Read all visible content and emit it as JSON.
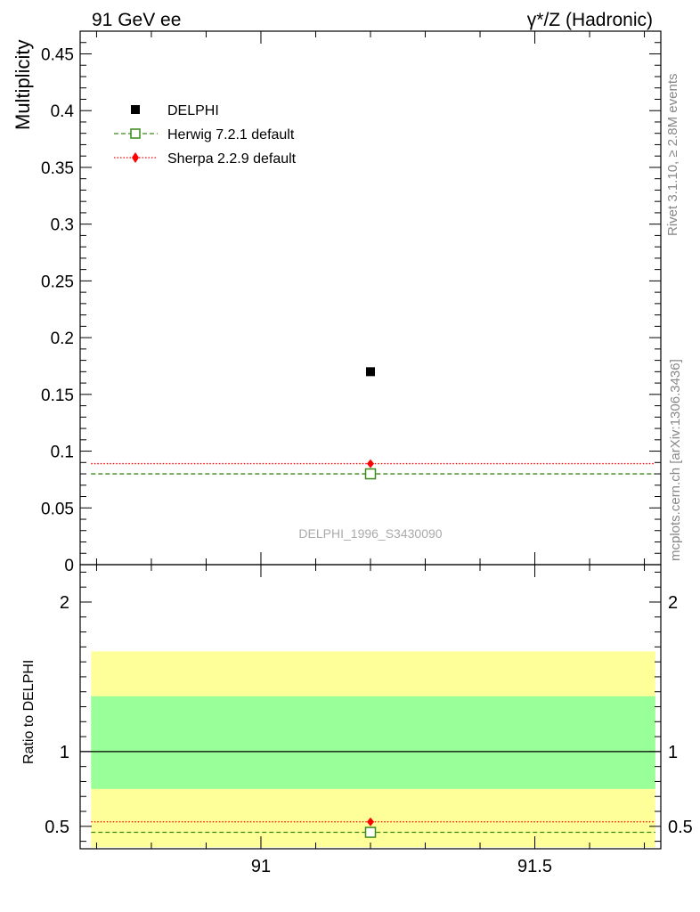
{
  "header": {
    "left_title": "91 GeV ee",
    "right_title": "γ*/Z (Hadronic)"
  },
  "side_labels": {
    "rivet": "Rivet 3.1.10, ≥ 2.8M events",
    "mcplots": "mcplots.cern.ch [arXiv:1306.3436]"
  },
  "watermark": "DELPHI_1996_S3430090",
  "colors": {
    "data": "#000000",
    "herwig": "#3a8a1a",
    "sherpa": "#ff0000",
    "band_inner": "#99ff99",
    "band_outer": "#ffff99"
  },
  "chart_data": [
    {
      "type": "scatter",
      "panel": "main",
      "ylabel": "Multiplicity",
      "xlim": [
        90.67,
        91.73
      ],
      "ylim": [
        0,
        0.47
      ],
      "yticks": [
        0,
        0.05,
        0.1,
        0.15,
        0.2,
        0.25,
        0.3,
        0.35,
        0.4,
        0.45
      ],
      "ytick_labels": [
        "0",
        "0.05",
        "0.1",
        "0.15",
        "0.2",
        "0.25",
        "0.3",
        "0.35",
        "0.4",
        "0.45"
      ],
      "legend_placement": "top-left",
      "series": [
        {
          "name": "DELPHI",
          "x": [
            91.2
          ],
          "y": [
            0.17
          ],
          "marker": "filled-square"
        },
        {
          "name": "Herwig 7.2.1 default",
          "x": [
            91.2
          ],
          "y": [
            0.08
          ],
          "line": "dashed",
          "marker": "open-square"
        },
        {
          "name": "Sherpa 2.2.9 default",
          "x": [
            91.2
          ],
          "y": [
            0.089
          ],
          "line": "dotted",
          "marker": "diamond"
        }
      ]
    },
    {
      "type": "line",
      "panel": "ratio",
      "ylabel": "Ratio to DELPHI",
      "xlim": [
        90.67,
        91.73
      ],
      "ylim": [
        0.35,
        2.25
      ],
      "xticks": [
        91,
        91.5
      ],
      "xtick_labels": [
        "91",
        "91.5"
      ],
      "yticks": [
        0.5,
        1,
        2
      ],
      "ytick_labels": [
        "0.5",
        "1",
        "2"
      ],
      "bands": {
        "inner": [
          0.75,
          1.37
        ],
        "outer": [
          0.36,
          1.67
        ]
      },
      "reference": 1,
      "series": [
        {
          "name": "Herwig 7.2.1 default",
          "x": [
            91.2
          ],
          "y": [
            0.46
          ]
        },
        {
          "name": "Sherpa 2.2.9 default",
          "x": [
            91.2
          ],
          "y": [
            0.53
          ]
        }
      ]
    }
  ]
}
